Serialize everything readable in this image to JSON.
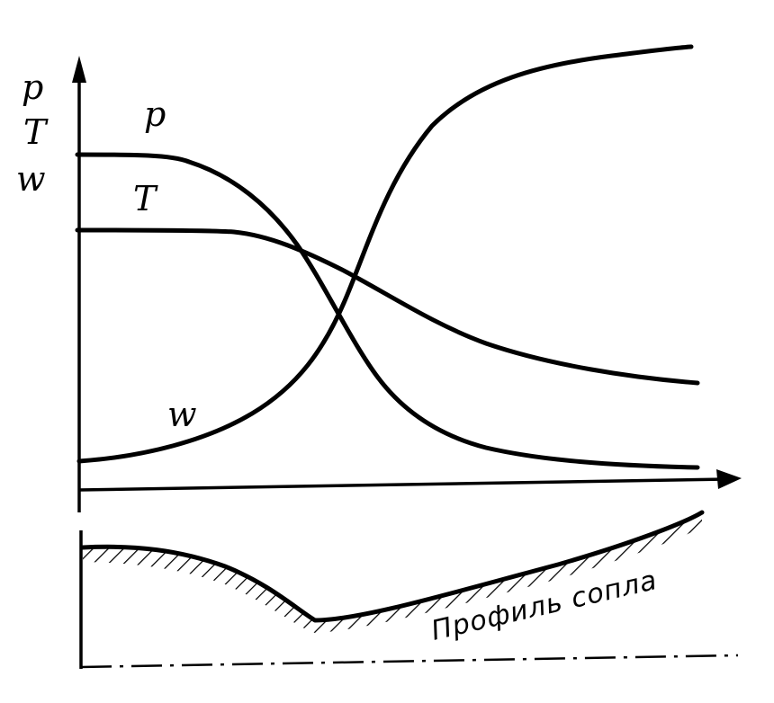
{
  "figure": {
    "axis_labels": {
      "p": "p",
      "T": "T",
      "w": "w"
    },
    "curve_labels": {
      "p": "p",
      "T": "T",
      "w": "w"
    },
    "nozzle_caption": "Профиль сопла"
  },
  "chart_data": {
    "type": "line",
    "title": "",
    "xlabel": "",
    "ylabel": "p T w",
    "series": [
      {
        "name": "p",
        "trend": "decreasing"
      },
      {
        "name": "T",
        "trend": "decreasing"
      },
      {
        "name": "w",
        "trend": "increasing"
      }
    ]
  }
}
